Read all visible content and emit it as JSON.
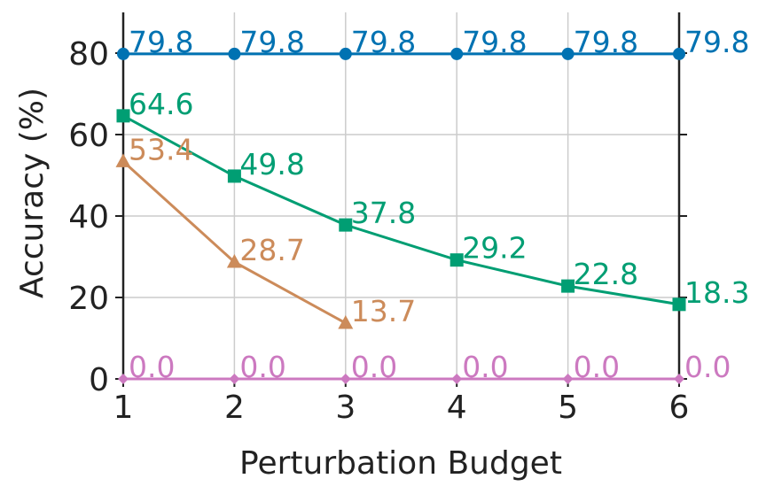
{
  "chart_data": {
    "type": "line",
    "x": [
      1,
      2,
      3,
      4,
      5,
      6
    ],
    "xlabel": "Perturbation Budget",
    "ylabel": "Accuracy (%)",
    "xlim": [
      1,
      6
    ],
    "ylim": [
      0,
      90
    ],
    "xticks": [
      "1",
      "2",
      "3",
      "4",
      "5",
      "6"
    ],
    "yticks": [
      "0",
      "20",
      "40",
      "60",
      "80"
    ],
    "grid": true,
    "series": [
      {
        "values": [
          79.8,
          79.8,
          79.8,
          79.8,
          79.8,
          79.8
        ],
        "labels": [
          "79.8",
          "79.8",
          "79.8",
          "79.8",
          "79.8",
          "79.8"
        ],
        "color": "#0072B2",
        "marker": "circle"
      },
      {
        "values": [
          64.6,
          49.8,
          37.8,
          29.2,
          22.8,
          18.3
        ],
        "labels": [
          "64.6",
          "49.8",
          "37.8",
          "29.2",
          "22.8",
          "18.3"
        ],
        "color": "#009E73",
        "marker": "square"
      },
      {
        "values": [
          53.4,
          28.7,
          13.7,
          null,
          null,
          null
        ],
        "labels": [
          "53.4",
          "28.7",
          "13.7",
          null,
          null,
          null
        ],
        "color": "#CC8B5A",
        "marker": "triangle"
      },
      {
        "values": [
          0.0,
          0.0,
          0.0,
          0.0,
          0.0,
          0.0
        ],
        "labels": [
          "0.0",
          "0.0",
          "0.0",
          "0.0",
          "0.0",
          "0.0"
        ],
        "color": "#CC79C0",
        "marker": "diamond"
      }
    ]
  }
}
